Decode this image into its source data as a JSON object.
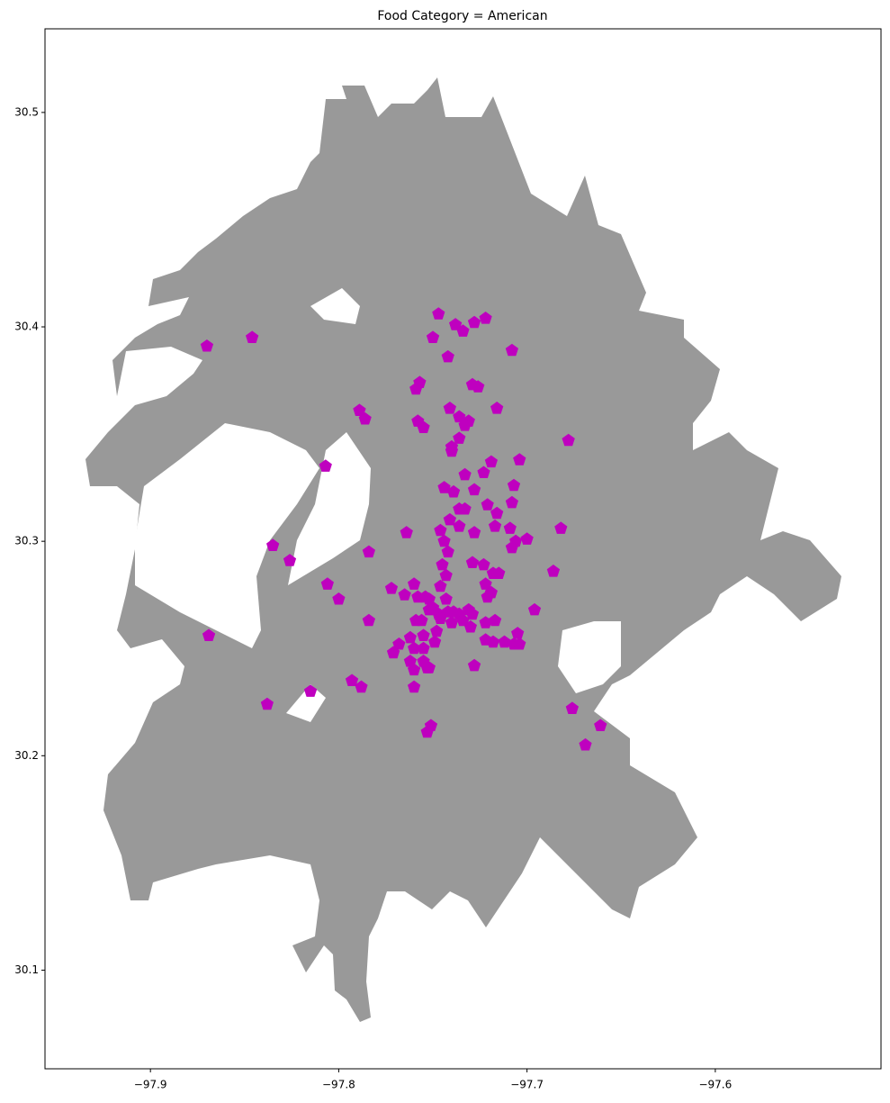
{
  "chart_data": {
    "type": "scatter",
    "title": "Food Category = American",
    "color": "#bf00bf",
    "marker": "pentagon",
    "xlim": [
      -97.956,
      -97.512
    ],
    "ylim": [
      30.054,
      30.539
    ],
    "xticks": [
      {
        "value": -97.9,
        "label": "−97.9"
      },
      {
        "value": -97.8,
        "label": "−97.8"
      },
      {
        "value": -97.7,
        "label": "−97.7"
      },
      {
        "value": -97.6,
        "label": "−97.6"
      }
    ],
    "yticks": [
      30.1,
      30.2,
      30.3,
      30.4,
      30.5
    ],
    "x": [
      -97.87,
      -97.846,
      -97.835,
      -97.826,
      -97.869,
      -97.838,
      -97.815,
      -97.807,
      -97.806,
      -97.8,
      -97.793,
      -97.788,
      -97.784,
      -97.784,
      -97.789,
      -97.786,
      -97.764,
      -97.772,
      -97.765,
      -97.771,
      -97.762,
      -97.76,
      -97.76,
      -97.758,
      -97.758,
      -97.755,
      -97.759,
      -97.757,
      -97.747,
      -97.75,
      -97.742,
      -97.741,
      -97.74,
      -97.74,
      -97.736,
      -97.738,
      -97.734,
      -97.728,
      -97.722,
      -97.716,
      -97.729,
      -97.726,
      -97.736,
      -97.731,
      -97.733,
      -97.719,
      -97.723,
      -97.744,
      -97.739,
      -97.728,
      -97.733,
      -97.721,
      -97.716,
      -97.707,
      -97.704,
      -97.708,
      -97.717,
      -97.709,
      -97.706,
      -97.7,
      -97.708,
      -97.736,
      -97.733,
      -97.741,
      -97.736,
      -97.728,
      -97.746,
      -97.744,
      -97.742,
      -97.745,
      -97.743,
      -97.746,
      -97.729,
      -97.723,
      -97.718,
      -97.715,
      -97.722,
      -97.719,
      -97.721,
      -97.73,
      -97.722,
      -97.717,
      -97.722,
      -97.718,
      -97.712,
      -97.707,
      -97.704,
      -97.705,
      -97.696,
      -97.686,
      -97.682,
      -97.678,
      -97.708,
      -97.728,
      -97.753,
      -97.76,
      -97.755,
      -97.755,
      -97.749,
      -97.755,
      -97.752,
      -97.76,
      -97.768,
      -97.771,
      -97.762,
      -97.756,
      -97.759,
      -97.754,
      -97.752,
      -97.75,
      -97.747,
      -97.743,
      -97.742,
      -97.739,
      -97.736,
      -97.731,
      -97.729,
      -97.734,
      -97.74,
      -97.746,
      -97.752,
      -97.748,
      -97.753,
      -97.751,
      -97.676,
      -97.661,
      -97.669
    ],
    "y": [
      30.391,
      30.395,
      30.298,
      30.291,
      30.256,
      30.224,
      30.23,
      30.335,
      30.28,
      30.273,
      30.235,
      30.232,
      30.263,
      30.295,
      30.361,
      30.357,
      30.304,
      30.278,
      30.275,
      30.248,
      30.255,
      30.232,
      30.28,
      30.274,
      30.356,
      30.353,
      30.371,
      30.374,
      30.406,
      30.395,
      30.386,
      30.362,
      30.344,
      30.342,
      30.348,
      30.401,
      30.398,
      30.402,
      30.404,
      30.362,
      30.373,
      30.372,
      30.358,
      30.356,
      30.354,
      30.337,
      30.332,
      30.325,
      30.323,
      30.324,
      30.331,
      30.317,
      30.313,
      30.326,
      30.338,
      30.318,
      30.307,
      30.306,
      30.3,
      30.301,
      30.297,
      30.315,
      30.315,
      30.31,
      30.307,
      30.304,
      30.305,
      30.3,
      30.295,
      30.289,
      30.284,
      30.279,
      30.29,
      30.289,
      30.285,
      30.285,
      30.28,
      30.276,
      30.274,
      30.26,
      30.262,
      30.263,
      30.254,
      30.253,
      30.253,
      30.252,
      30.252,
      30.257,
      30.268,
      30.286,
      30.306,
      30.347,
      30.389,
      30.242,
      30.241,
      30.24,
      30.244,
      30.25,
      30.253,
      30.256,
      30.241,
      30.25,
      30.252,
      30.248,
      30.244,
      30.263,
      30.263,
      30.274,
      30.273,
      30.269,
      30.266,
      30.273,
      30.267,
      30.267,
      30.266,
      30.268,
      30.266,
      30.263,
      30.262,
      30.264,
      30.268,
      30.258,
      30.211,
      30.214,
      30.222,
      30.214,
      30.205
    ]
  }
}
